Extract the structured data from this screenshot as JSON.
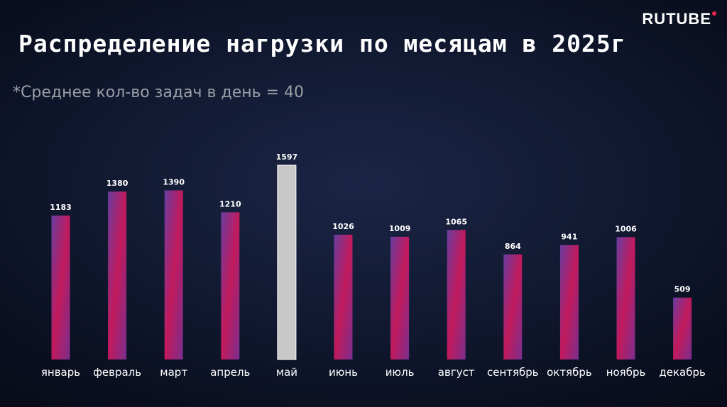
{
  "logo": "RUTUBE",
  "title": "Распределение нагрузки по месяцам в 2025г",
  "subtitle": "*Среднее кол-во задач в день = 40",
  "colors": {
    "bar_gradient": [
      "#7a2e8e",
      "#c21a5c",
      "#6a3da0"
    ],
    "highlight_bar": "#c8c8c8",
    "logo_dot": "#e8254b"
  },
  "chart_data": {
    "type": "bar",
    "categories": [
      "январь",
      "февраль",
      "март",
      "апрель",
      "май",
      "июнь",
      "июль",
      "август",
      "сентябрь",
      "октябрь",
      "ноябрь",
      "декабрь"
    ],
    "values": [
      1183,
      1380,
      1390,
      1210,
      1597,
      1026,
      1009,
      1065,
      864,
      941,
      1006,
      509
    ],
    "highlight_index": 4,
    "title": "",
    "xlabel": "",
    "ylabel": "",
    "ylim": [
      0,
      1597
    ],
    "grid": false,
    "legend": "none"
  }
}
